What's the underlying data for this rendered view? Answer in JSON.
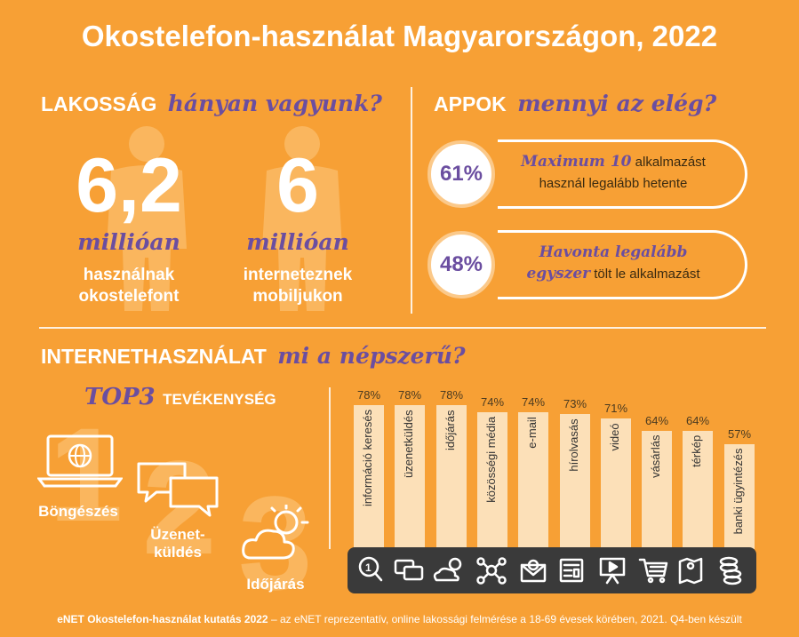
{
  "title": "Okostelefon-használat Magyarországon, 2022",
  "population": {
    "head": "LAKOSSÁG",
    "script": "hányan vagyunk?",
    "stats": [
      {
        "number": "6,2",
        "unit": "millióan",
        "line1": "használnak",
        "line2": "okostelefont"
      },
      {
        "number": "6",
        "unit": "millióan",
        "line1": "interneteznek",
        "line2": "mobiljukon"
      }
    ]
  },
  "apps": {
    "head": "APPOK",
    "script": "mennyi az elég?",
    "stats": [
      {
        "pct": "61%",
        "script": "Maximum 10",
        "rest1": "alkalmazást",
        "line2": "használ legalább hetente"
      },
      {
        "pct": "48%",
        "script1": "Havonta legalább",
        "script2": "egyszer",
        "rest2": "tölt le alkalmazást"
      }
    ]
  },
  "internet": {
    "head": "INTERNETHASZNÁLAT",
    "script": "mi a népszerű?"
  },
  "top3": {
    "script": "TOP3",
    "head": "TEVÉKENYSÉG",
    "items": [
      {
        "rank": "1",
        "label": "Böngészés"
      },
      {
        "rank": "2",
        "label1": "Üzenet-",
        "label2": "küldés"
      },
      {
        "rank": "3",
        "label": "Időjárás"
      }
    ]
  },
  "chart_data": {
    "type": "bar",
    "categories": [
      "információ keresés",
      "üzenetküldés",
      "időjárás",
      "közösségi média",
      "e-mail",
      "hírolvasás",
      "videó",
      "vásárlás",
      "térkép",
      "banki ügyintézés"
    ],
    "values": [
      78,
      78,
      78,
      74,
      74,
      73,
      71,
      64,
      64,
      57
    ],
    "value_labels": [
      "78%",
      "78%",
      "78%",
      "74%",
      "74%",
      "73%",
      "71%",
      "64%",
      "64%",
      "57%"
    ],
    "icons": [
      "search-icon",
      "chat-icon",
      "weather-icon",
      "network-icon",
      "email-icon",
      "news-icon",
      "video-icon",
      "cart-icon",
      "map-icon",
      "coins-icon"
    ],
    "ylim": [
      0,
      100
    ],
    "bar_color": "#FCE0B8"
  },
  "footer": {
    "bold": "eNET Okostelefon-használat kutatás 2022",
    "rest": " – az eNET reprezentatív, online lakossági felmérése a 18-69 évesek körében, 2021. Q4-ben készült"
  },
  "colors": {
    "background": "#F7A035",
    "accent": "#6B4EA0",
    "bar": "#FCE0B8",
    "icon_strip": "#3a3a3a"
  }
}
